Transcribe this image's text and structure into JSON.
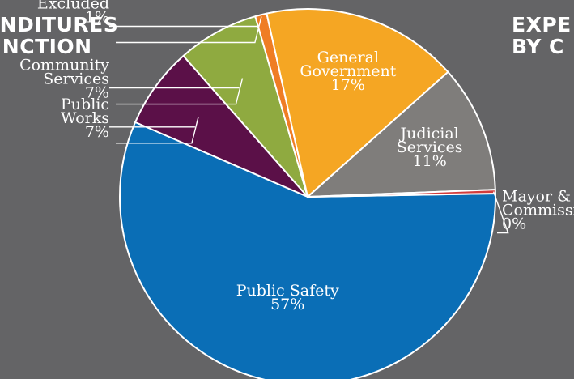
{
  "headings": {
    "left": [
      "ENDITURES",
      "UNCTION"
    ],
    "right": [
      "EXPE",
      "BY C"
    ]
  },
  "chart_data": {
    "type": "pie",
    "title": "",
    "slices": [
      {
        "label": "Public Safety",
        "value": 57,
        "display": "57%",
        "color": "#0a6eb6"
      },
      {
        "label": "Public Works",
        "value": 7,
        "display": "7%",
        "color": "#5b1048"
      },
      {
        "label": "Community Services",
        "value": 7,
        "display": "7%",
        "color": "#8faa40"
      },
      {
        "label": "Excluded",
        "value": 1,
        "display": "1%",
        "color": "#ef7d24"
      },
      {
        "label": "General Government",
        "value": 17,
        "display": "17%",
        "color": "#f5a623"
      },
      {
        "label": "Judicial Services",
        "value": 11,
        "display": "11%",
        "color": "#7f7d7b"
      },
      {
        "label": "Mayor & Commission",
        "value": 0,
        "display": "0%",
        "color": "#d23c3c"
      }
    ]
  }
}
